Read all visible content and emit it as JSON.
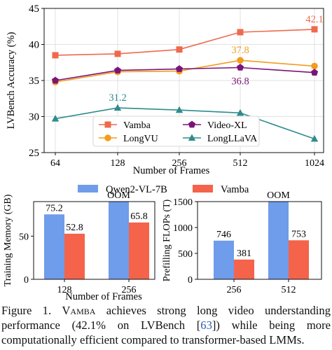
{
  "charts": {
    "accuracy": {
      "type": "line",
      "xlabel": "Number of Frames",
      "ylabel": "LVBench Accuracy (%)",
      "categories": [
        "64",
        "128",
        "256",
        "512",
        "1024"
      ],
      "ylim": [
        25,
        45
      ],
      "yticks": [
        25,
        30,
        35,
        40,
        45
      ],
      "grid": true,
      "legend_position": "bottom-center",
      "series": [
        {
          "name": "Vamba",
          "color": "#EE6A4D",
          "marker": "square",
          "values": [
            38.5,
            38.7,
            39.3,
            41.7,
            42.1
          ]
        },
        {
          "name": "Video-XL",
          "color": "#7B1478",
          "marker": "pentagon",
          "values": [
            35.0,
            36.4,
            36.6,
            36.8,
            36.1
          ]
        },
        {
          "name": "LongVU",
          "color": "#F39C1F",
          "marker": "circle",
          "values": [
            34.8,
            36.2,
            36.3,
            37.8,
            37.0
          ]
        },
        {
          "name": "LongLLaVA",
          "color": "#2E8C8C",
          "marker": "triangle",
          "values": [
            29.7,
            31.2,
            30.9,
            30.5,
            26.9
          ]
        }
      ],
      "annotations": [
        {
          "text": "42.1",
          "series": "Vamba",
          "index": 4,
          "color": "#EE6A4D"
        },
        {
          "text": "37.8",
          "series": "LongVU",
          "index": 3,
          "color": "#F39C1F"
        },
        {
          "text": "36.8",
          "series": "Video-XL",
          "index": 3,
          "color": "#7B1478"
        },
        {
          "text": "31.2",
          "series": "LongLLaVA",
          "index": 1,
          "color": "#2E8C8C"
        }
      ]
    },
    "bar_legend": [
      {
        "name": "Qwen2-VL-7B",
        "color": "#6F9CEB"
      },
      {
        "name": "Vamba",
        "color": "#F4634A"
      }
    ],
    "memory": {
      "type": "bar",
      "ylabel": "Training Memory (GB)",
      "xlabel": "Number of Frames",
      "categories": [
        "128",
        "256"
      ],
      "ylim": [
        0,
        90
      ],
      "yticks": [
        0,
        50
      ],
      "series": [
        {
          "name": "Qwen2-VL-7B",
          "values": [
            75.2,
            90
          ],
          "labels": [
            "75.2",
            "OOM"
          ]
        },
        {
          "name": "Vamba",
          "values": [
            52.8,
            65.8
          ],
          "labels": [
            "52.8",
            "65.8"
          ]
        }
      ]
    },
    "flops": {
      "type": "bar",
      "ylabel": "Prefilling FLOPs (T)",
      "categories": [
        "256",
        "512"
      ],
      "ylim": [
        0,
        1500
      ],
      "yticks": [
        0,
        500,
        1000,
        1500
      ],
      "series": [
        {
          "name": "Qwen2-VL-7B",
          "values": [
            746,
            1500
          ],
          "labels": [
            "746",
            "OOM"
          ]
        },
        {
          "name": "Vamba",
          "values": [
            381,
            753
          ],
          "labels": [
            "381",
            "753"
          ]
        }
      ]
    }
  },
  "caption": {
    "label": "Figure 1.",
    "name": "Vamba",
    "text1": " achieves strong long video understanding performance (42.1% on LVBench [",
    "cite": "63",
    "text2": "]) while being more computationally efficient compared to transformer-based LMMs."
  }
}
